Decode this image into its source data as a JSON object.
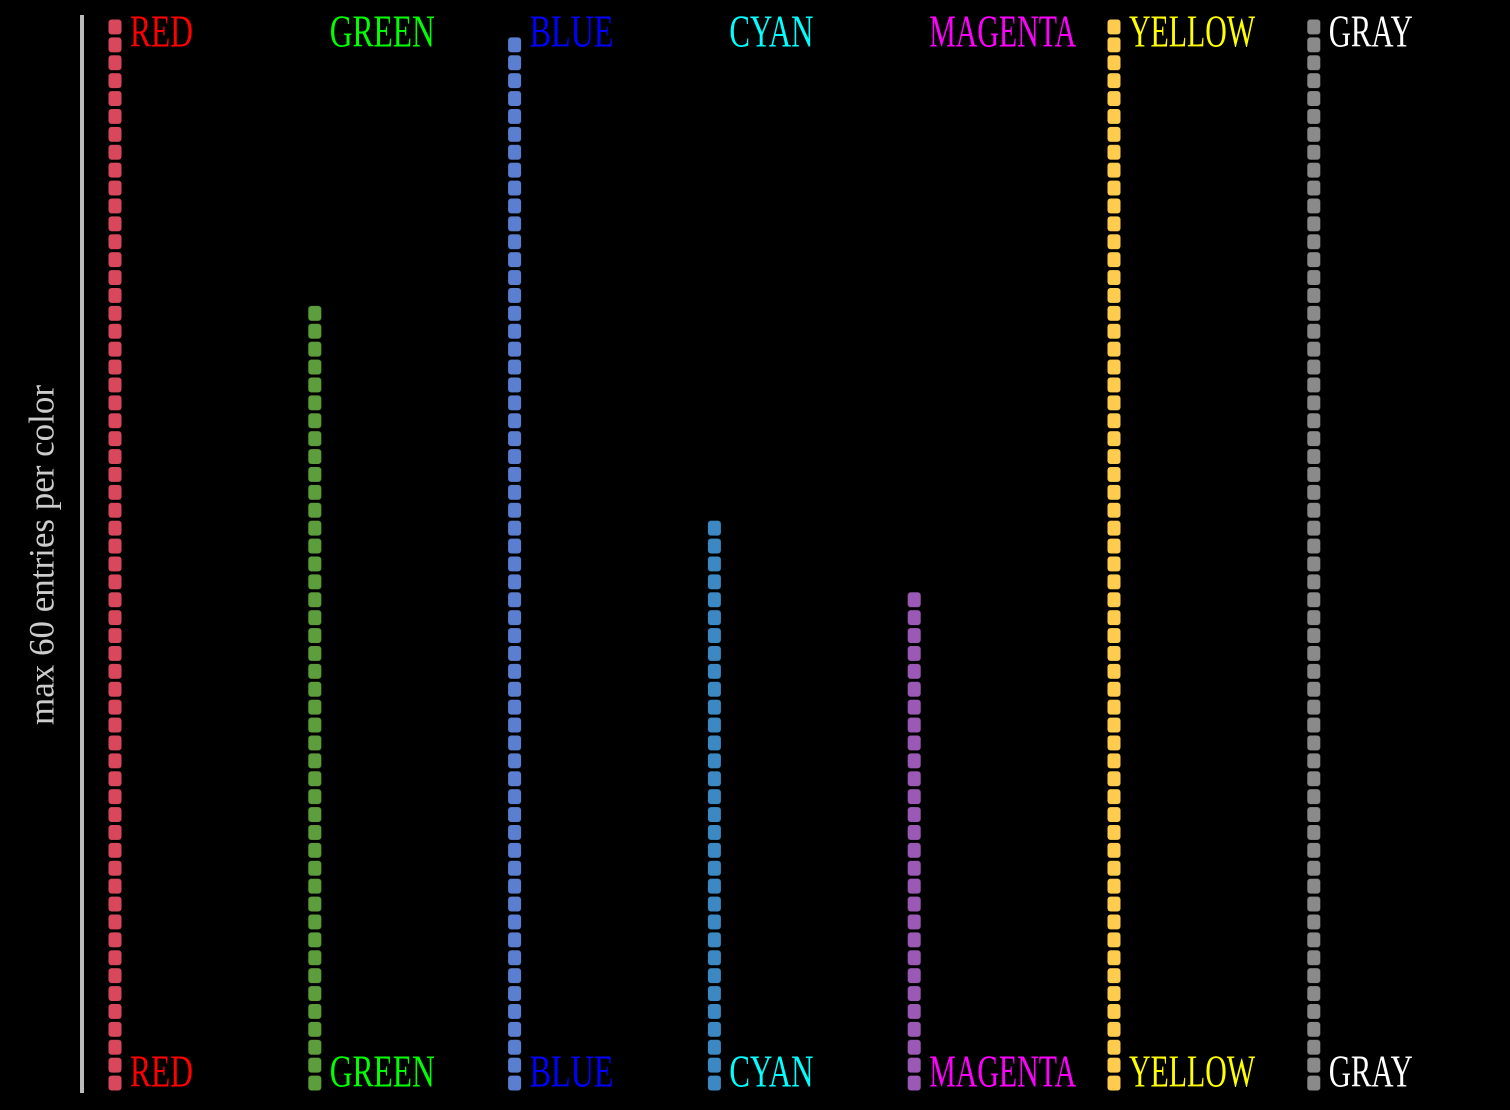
{
  "chart_data": {
    "type": "pictogram",
    "y_label": "max 60 entries per color",
    "categories": [
      "RED",
      "GREEN",
      "BLUE",
      "CYAN",
      "MAGENTA",
      "YELLOW",
      "GRAY"
    ],
    "values": [
      60,
      44,
      59,
      32,
      28,
      60,
      60
    ],
    "label_colors": [
      "#ff0000",
      "#00ff00",
      "#0000ff",
      "#00ffff",
      "#ff00ff",
      "#ffff00",
      "#ffffff"
    ],
    "mark_colors": [
      "#d9475c",
      "#5c9e3c",
      "#5b7fd0",
      "#3b88c3",
      "#9b59b6",
      "#ffcc4d",
      "#8a8a8a"
    ],
    "ylim": [
      0,
      60
    ]
  }
}
